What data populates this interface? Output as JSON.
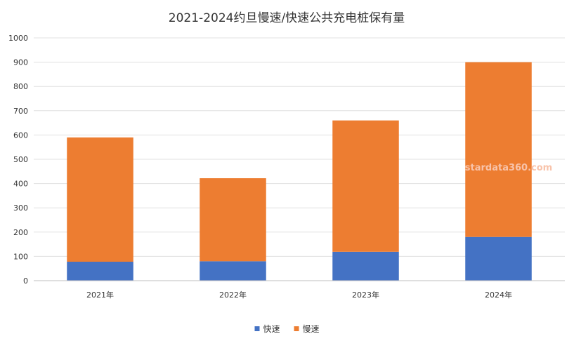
{
  "chart_data": {
    "type": "bar",
    "stacked": true,
    "title": "2021-2024约旦慢速/快速公共充电桩保有量",
    "categories": [
      "2021年",
      "2022年",
      "2023年",
      "2024年"
    ],
    "series": [
      {
        "name": "快速",
        "color": "#4472c4",
        "values": [
          78,
          80,
          119,
          180
        ]
      },
      {
        "name": "慢速",
        "color": "#ed7d31",
        "values": [
          512,
          342,
          541,
          720
        ]
      }
    ],
    "ylim": [
      0,
      1000
    ],
    "yticks": [
      0,
      100,
      200,
      300,
      400,
      500,
      600,
      700,
      800,
      900,
      1000
    ],
    "grid": true,
    "legend_position": "bottom",
    "xlabel": "",
    "ylabel": ""
  },
  "watermark": "stardata360.com"
}
